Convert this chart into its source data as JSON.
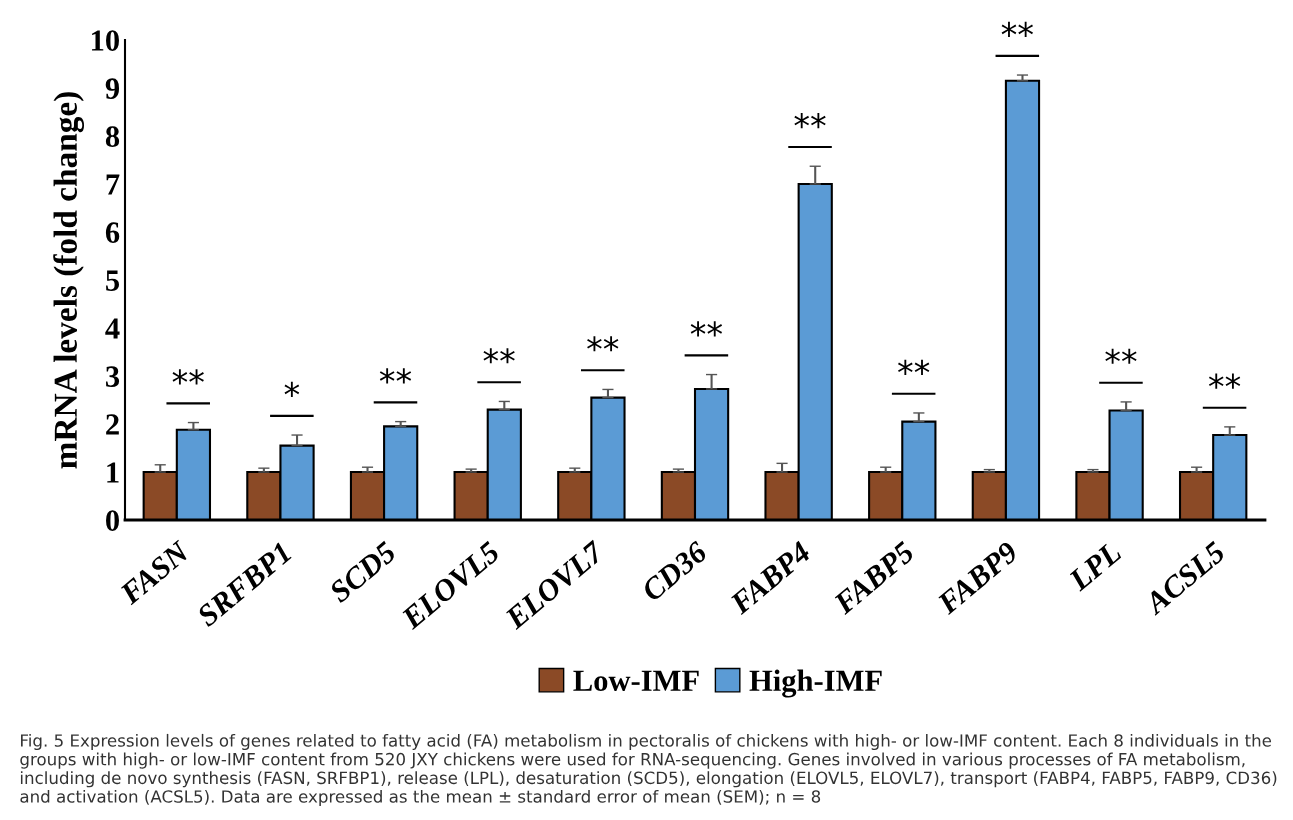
{
  "chart_data": {
    "type": "bar",
    "ylabel": "mRNA levels (fold change)",
    "categories": [
      "FASN",
      "SRFBP1",
      "SCD5",
      "ELOVL5",
      "ELOVL7",
      "CD36",
      "FABP4",
      "FABP5",
      "FABP9",
      "LPL",
      "ACSL5"
    ],
    "series": [
      {
        "name": "Low-IMF",
        "color": "#8b4a26",
        "values": [
          1,
          1,
          1,
          1,
          1,
          1,
          1,
          1,
          1,
          1,
          1
        ],
        "errors": [
          0.15,
          0.08,
          0.1,
          0.06,
          0.08,
          0.06,
          0.18,
          0.1,
          0.05,
          0.05,
          0.1
        ]
      },
      {
        "name": "High-IMF",
        "color": "#5b9bd5",
        "values": [
          1.88,
          1.55,
          1.95,
          2.3,
          2.55,
          2.73,
          7.0,
          2.05,
          9.15,
          2.28,
          1.77
        ],
        "errors": [
          0.15,
          0.22,
          0.1,
          0.17,
          0.17,
          0.3,
          0.37,
          0.18,
          0.12,
          0.18,
          0.17
        ]
      }
    ],
    "ylim": [
      0,
      10
    ],
    "yticks": [
      0,
      1,
      2,
      3,
      4,
      5,
      6,
      7,
      8,
      9,
      10
    ],
    "grid": false,
    "legend": "bottom",
    "annotations": [
      "**",
      "*",
      "**",
      "**",
      "**",
      "**",
      "**",
      "**",
      "**",
      "**",
      "**",
      "Fig. 5 Expression levels of genes related to fatty acid (FA) metabolism in pectoralis of chickens with high- or low-IMF content. Each 8 individuals in the groups with high- or low-IMF content from 520 JXY chickens were used for RNA-sequencing. Genes involved in various processes of FA metabolism, including de novo synthesis (FASN, SRFBP1), release (LPL), desaturation (SCD5), elongation (ELOVL5, ELOVL7), transport (FABP4, FABP5, FABP9, CD36) and activation (ACSL5). Data are expressed as the mean ± standard error of mean (SEM); n = 8"
    ]
  }
}
